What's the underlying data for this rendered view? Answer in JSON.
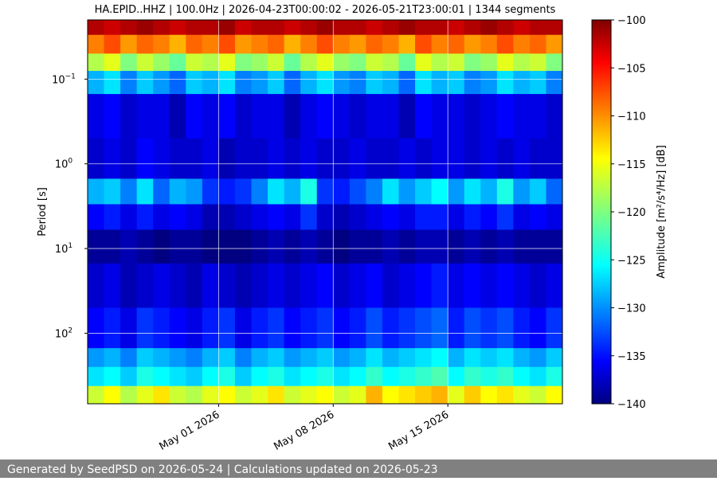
{
  "chart_data": {
    "type": "spectrogram",
    "title": "HA.EPID..HHZ | 100.0Hz | 2026-04-23T00:00:02 - 2026-05-21T23:00:01 | 1344 segments",
    "ylabel": "Period [s]",
    "colorbar_label": "Amplitude [m²/s⁴/Hz] [dB]",
    "footer": "Generated by SeedPSD on 2026-05-24 | Calculations updated on 2026-05-23",
    "log_y": true,
    "grid": true,
    "colormap": "jet",
    "xlim": [
      "2026-04-23",
      "2026-05-22"
    ],
    "xticks": [
      {
        "value": "2026-05-01",
        "label": "May 01 2026"
      },
      {
        "value": "2026-05-08",
        "label": "May 08 2026"
      },
      {
        "value": "2026-05-15",
        "label": "May 15 2026"
      }
    ],
    "ylim": [
      680,
      0.02
    ],
    "yticks": [
      {
        "value": 0.1,
        "label": "10",
        "exponent": "−1"
      },
      {
        "value": 1,
        "label": "10",
        "exponent": "0"
      },
      {
        "value": 10,
        "label": "10",
        "exponent": "1"
      },
      {
        "value": 100,
        "label": "10",
        "exponent": "2"
      }
    ],
    "clim": [
      -140,
      -100
    ],
    "cticks": [
      {
        "value": -100,
        "label": "−100"
      },
      {
        "value": -105,
        "label": "−105"
      },
      {
        "value": -110,
        "label": "−110"
      },
      {
        "value": -115,
        "label": "−115"
      },
      {
        "value": -120,
        "label": "−120"
      },
      {
        "value": -125,
        "label": "−125"
      },
      {
        "value": -130,
        "label": "−130"
      },
      {
        "value": -135,
        "label": "−135"
      },
      {
        "value": -140,
        "label": "−140"
      }
    ],
    "x": [
      "2026-04-23",
      "2026-04-24",
      "2026-04-25",
      "2026-04-26",
      "2026-04-27",
      "2026-04-28",
      "2026-04-29",
      "2026-04-30",
      "2026-05-01",
      "2026-05-02",
      "2026-05-03",
      "2026-05-04",
      "2026-05-05",
      "2026-05-06",
      "2026-05-07",
      "2026-05-08",
      "2026-05-09",
      "2026-05-10",
      "2026-05-11",
      "2026-05-12",
      "2026-05-13",
      "2026-05-14",
      "2026-05-15",
      "2026-05-16",
      "2026-05-17",
      "2026-05-18",
      "2026-05-19",
      "2026-05-20",
      "2026-05-21"
    ],
    "y_edges": [
      0.02,
      0.03,
      0.05,
      0.08,
      0.15,
      0.5,
      1.5,
      3,
      6,
      15,
      50,
      150,
      250,
      420,
      680
    ],
    "values": [
      [
        -102,
        -103,
        -102,
        -101,
        -102,
        -103,
        -102,
        -102,
        -101,
        -103,
        -102,
        -102,
        -103,
        -102,
        -101,
        -102,
        -102,
        -103,
        -102,
        -101,
        -102,
        -102,
        -103,
        -102,
        -101,
        -102,
        -103,
        -102,
        -102
      ],
      [
        -110,
        -108,
        -111,
        -109,
        -110,
        -112,
        -109,
        -110,
        -108,
        -111,
        -110,
        -109,
        -112,
        -110,
        -108,
        -110,
        -111,
        -109,
        -110,
        -112,
        -108,
        -110,
        -109,
        -111,
        -110,
        -108,
        -110,
        -109,
        -111
      ],
      [
        -118,
        -116,
        -120,
        -117,
        -119,
        -121,
        -117,
        -118,
        -116,
        -120,
        -119,
        -117,
        -121,
        -118,
        -116,
        -119,
        -120,
        -117,
        -118,
        -121,
        -116,
        -118,
        -117,
        -120,
        -119,
        -116,
        -118,
        -117,
        -120
      ],
      [
        -128,
        -126,
        -130,
        -127,
        -129,
        -131,
        -127,
        -128,
        -126,
        -130,
        -129,
        -127,
        -131,
        -128,
        -126,
        -129,
        -130,
        -127,
        -128,
        -131,
        -126,
        -128,
        -127,
        -130,
        -129,
        -126,
        -128,
        -127,
        -130
      ],
      [
        -136,
        -135,
        -137,
        -136,
        -136,
        -138,
        -135,
        -136,
        -135,
        -137,
        -136,
        -136,
        -138,
        -136,
        -135,
        -136,
        -137,
        -136,
        -136,
        -138,
        -135,
        -136,
        -136,
        -137,
        -136,
        -135,
        -136,
        -136,
        -137
      ],
      [
        -137,
        -136,
        -137,
        -135,
        -136,
        -137,
        -137,
        -136,
        -138,
        -137,
        -137,
        -136,
        -137,
        -136,
        -137,
        -137,
        -136,
        -137,
        -137,
        -136,
        -137,
        -136,
        -136,
        -137,
        -136,
        -137,
        -136,
        -137,
        -137
      ],
      [
        -128,
        -127,
        -130,
        -126,
        -131,
        -128,
        -129,
        -133,
        -134,
        -133,
        -130,
        -126,
        -128,
        -124,
        -133,
        -134,
        -132,
        -130,
        -126,
        -129,
        -127,
        -125,
        -129,
        -126,
        -128,
        -124,
        -129,
        -127,
        -131
      ],
      [
        -135,
        -134,
        -136,
        -134,
        -136,
        -135,
        -136,
        -138,
        -138,
        -137,
        -136,
        -135,
        -136,
        -133,
        -137,
        -138,
        -137,
        -136,
        -135,
        -136,
        -134,
        -134,
        -136,
        -134,
        -135,
        -133,
        -136,
        -135,
        -136
      ],
      [
        -139,
        -139,
        -138,
        -139,
        -140,
        -139,
        -139,
        -140,
        -140,
        -140,
        -139,
        -138,
        -139,
        -138,
        -139,
        -140,
        -139,
        -139,
        -138,
        -139,
        -138,
        -138,
        -139,
        -138,
        -139,
        -138,
        -139,
        -139,
        -139
      ],
      [
        -137,
        -136,
        -138,
        -137,
        -136,
        -137,
        -138,
        -136,
        -137,
        -138,
        -137,
        -136,
        -137,
        -136,
        -135,
        -137,
        -136,
        -135,
        -137,
        -136,
        -135,
        -134,
        -136,
        -135,
        -136,
        -135,
        -136,
        -137,
        -136
      ],
      [
        -135,
        -134,
        -136,
        -133,
        -134,
        -135,
        -136,
        -134,
        -133,
        -136,
        -134,
        -133,
        -135,
        -134,
        -133,
        -135,
        -134,
        -132,
        -134,
        -133,
        -132,
        -131,
        -134,
        -132,
        -133,
        -132,
        -134,
        -135,
        -133
      ],
      [
        -129,
        -128,
        -130,
        -127,
        -128,
        -129,
        -130,
        -128,
        -127,
        -130,
        -128,
        -127,
        -129,
        -128,
        -127,
        -129,
        -128,
        -126,
        -128,
        -127,
        -126,
        -125,
        -128,
        -126,
        -127,
        -126,
        -128,
        -129,
        -127
      ],
      [
        -126,
        -125,
        -127,
        -124,
        -125,
        -126,
        -127,
        -125,
        -124,
        -127,
        -125,
        -124,
        -126,
        -125,
        -124,
        -126,
        -125,
        -123,
        -125,
        -124,
        -123,
        -122,
        -125,
        -123,
        -124,
        -123,
        -125,
        -126,
        -124
      ],
      [
        -117,
        -115,
        -118,
        -116,
        -114,
        -117,
        -118,
        -116,
        -115,
        -117,
        -116,
        -114,
        -117,
        -116,
        -115,
        -117,
        -116,
        -112,
        -115,
        -114,
        -113,
        -112,
        -116,
        -113,
        -115,
        -114,
        -116,
        -117,
        -115
      ]
    ]
  }
}
